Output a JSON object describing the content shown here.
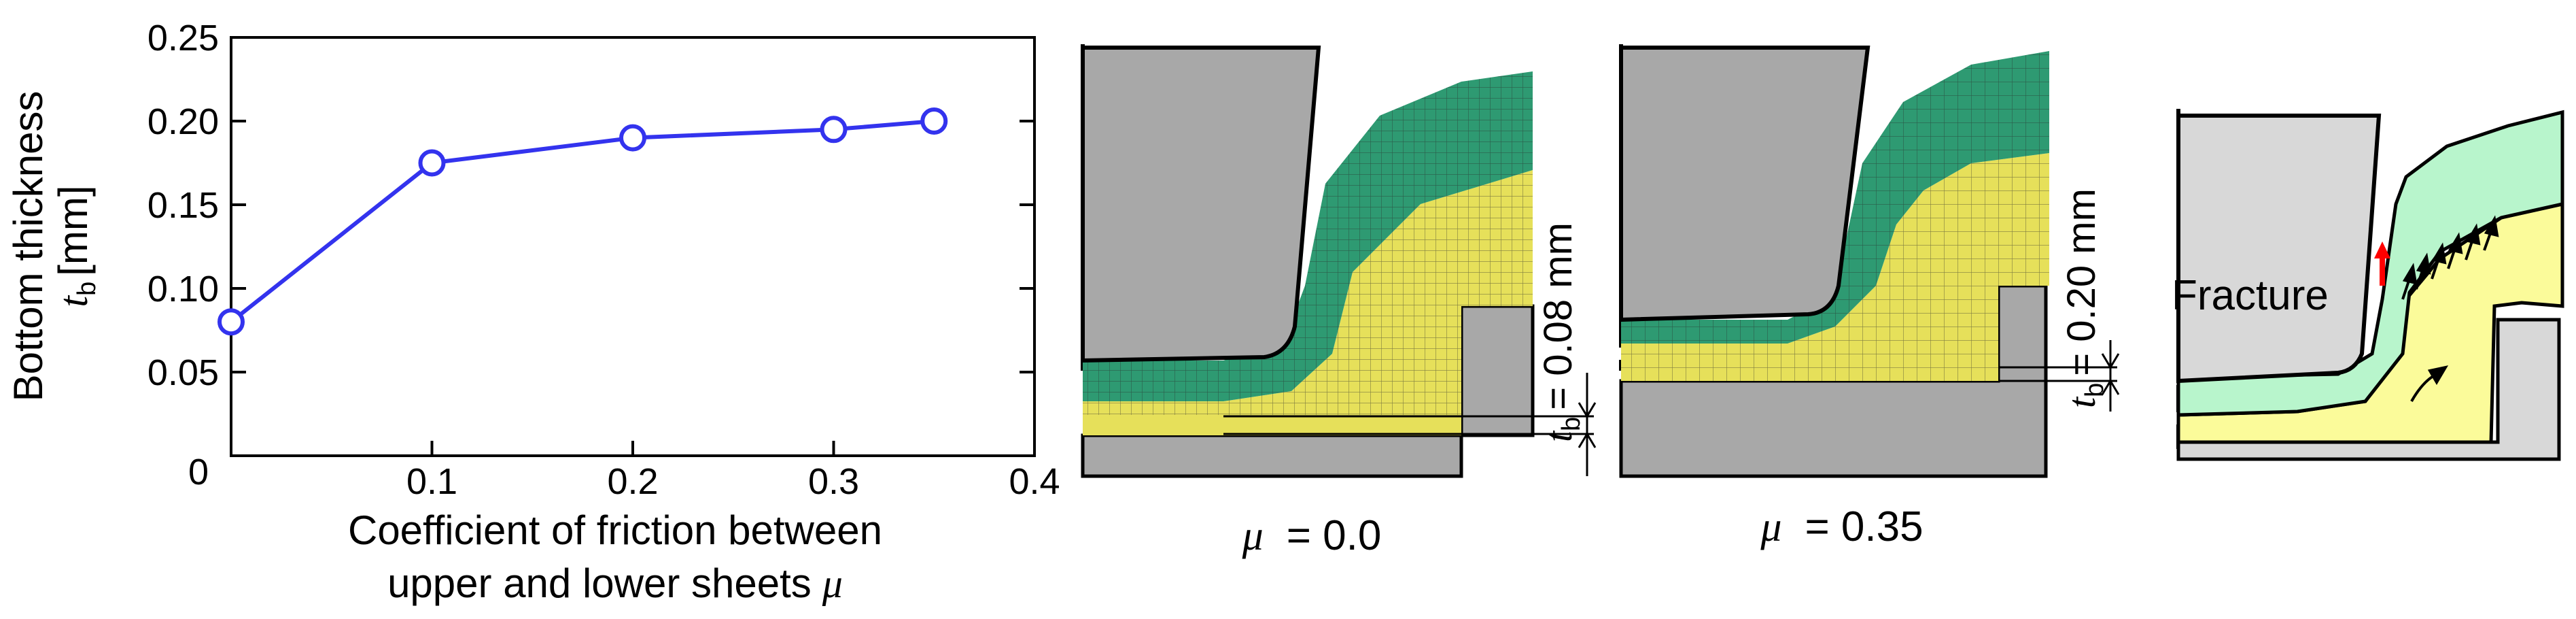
{
  "chart_data": {
    "type": "line",
    "ylabel_line1": "Bottom thickness",
    "ylabel_sym": "t",
    "ylabel_sub": "b",
    "ylabel_unit": "[mm]",
    "xlabel_line1": "Coefficient of friction between",
    "xlabel_line2": "upper and lower sheets",
    "xlabel_sym": "μ",
    "xlim": [
      0,
      0.4
    ],
    "ylim": [
      0,
      0.25
    ],
    "xticks": [
      0.1,
      0.2,
      0.3,
      0.4
    ],
    "xtick_labels": [
      "0.1",
      "0.2",
      "0.3",
      "0.4"
    ],
    "yticks": [
      0.05,
      0.1,
      0.15,
      0.2,
      0.25
    ],
    "ytick_labels": [
      "0.05",
      "0.10",
      "0.15",
      "0.20",
      "0.25"
    ],
    "origin_label": "0",
    "series": [
      {
        "x": [
          0.0,
          0.1,
          0.2,
          0.3,
          0.35
        ],
        "y": [
          0.08,
          0.175,
          0.19,
          0.195,
          0.2
        ],
        "color": "#3333ee"
      }
    ],
    "grid": false
  },
  "panels": {
    "sim1": {
      "mu_sym": "μ",
      "mu_value": "= 0.0",
      "thickness_sym": "t",
      "thickness_sub": "b",
      "thickness_value": "= 0.08 mm"
    },
    "sim2": {
      "mu_sym": "μ",
      "mu_value": "= 0.35",
      "thickness_sym": "t",
      "thickness_sub": "b",
      "thickness_value": "= 0.20 mm"
    },
    "schematic": {
      "fracture_label": "Fracture",
      "fracture_color": "#ff0000"
    }
  },
  "colors": {
    "upper_sheet": "#2e9a72",
    "lower_sheet": "#e6e05a",
    "tool": "#a8a8a8",
    "schematic_tool": "#d8d8d8",
    "schematic_upper": "#b8f5cc",
    "schematic_lower": "#fbfb9a",
    "line": "#3333ee"
  }
}
